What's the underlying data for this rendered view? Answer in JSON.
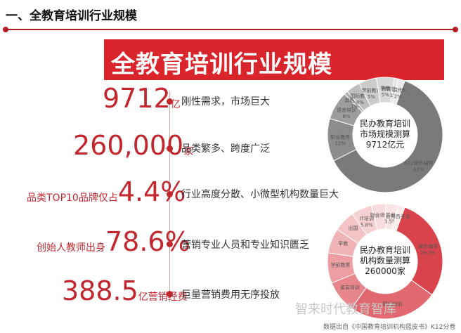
{
  "header": {
    "section_title": "一、全教育培训行业规模",
    "banner_title": "全教育培训行业规模"
  },
  "stats": [
    {
      "prefix": "",
      "value": "9712",
      "unit": "亿",
      "desc": "刚性需求，市场巨大"
    },
    {
      "prefix": "",
      "value": "260,000",
      "unit": "家",
      "desc": "品类繁多、跨度广泛"
    },
    {
      "prefix": "品类TOP10品牌仅占",
      "value": "4.4%",
      "unit": "",
      "desc": "行业高度分散、小微型机构数量巨大"
    },
    {
      "prefix": "创始人教师出身",
      "value": "78.6%",
      "unit": "",
      "desc": "营销专业人员和专业知识匮乏"
    },
    {
      "prefix": "",
      "value": "388.5",
      "unit": "亿营销经费",
      "desc": "巨量营销费用无序投放"
    }
  ],
  "colors": {
    "accent": "#c3272e",
    "banner": "#d9242b",
    "donut_gray": [
      "#7a7a7a",
      "#8c8c8c",
      "#9d9d9d",
      "#aeaeae",
      "#bdbdbd",
      "#cbcbcb",
      "#d8d8d8",
      "#e2e2e2",
      "#eaeaea"
    ],
    "donut_red": [
      "#d9444c",
      "#e1686e",
      "#e7868b",
      "#ec9ea2",
      "#f0b3b6",
      "#f3c3c5",
      "#f6d1d3",
      "#f8dcdd",
      "#fae5e6",
      "#fbeced"
    ]
  },
  "chart_data": [
    {
      "type": "pie",
      "center_title": [
        "民办教育培训",
        "市场规模测算",
        "9712亿元"
      ],
      "slices": [
        {
          "label": "K12课外辅导",
          "value": 62,
          "value_label": "62%"
        },
        {
          "label": "职业教育",
          "value": 12,
          "value_label": "12%"
        },
        {
          "label": "语言培训",
          "value": 8,
          "value_label": "8%"
        },
        {
          "label": "其他培训",
          "value": 1,
          "value_label": "1%"
        },
        {
          "label": "国际教育",
          "value": 4,
          "value_label": "4%"
        },
        {
          "label": "学前教育",
          "value": 5,
          "value_label": "5%"
        },
        {
          "label": "早教",
          "value": 5,
          "value_label": "5%"
        },
        {
          "label": "教育信息化",
          "value": 1,
          "value_label": "1%"
        },
        {
          "label": "其他",
          "value": 2,
          "value_label": "2%"
        }
      ]
    },
    {
      "type": "pie",
      "center_title": [
        "民办教育培训",
        "机构数量测算",
        "260000家"
      ],
      "slices": [
        {
          "label": "课外辅导",
          "value": 29.3,
          "value_label": "29.3%"
        },
        {
          "label": "职业培训",
          "value": 25,
          "value_label": ""
        },
        {
          "label": "语言培训",
          "value": 9,
          "value_label": ""
        },
        {
          "label": "学前教育",
          "value": 8.5,
          "value_label": ""
        },
        {
          "label": "早教",
          "value": 7,
          "value_label": ""
        },
        {
          "label": "出国",
          "value": 6,
          "value_label": ""
        },
        {
          "label": "IT培训",
          "value": 5.8,
          "value_label": "5.8%"
        },
        {
          "label": "财会培训",
          "value": 4,
          "value_label": ""
        },
        {
          "label": "其他",
          "value": 3.5,
          "value_label": "3.5%"
        },
        {
          "label": "公务员考试",
          "value": 1.9,
          "value_label": ""
        }
      ]
    }
  ],
  "footer": {
    "brand": "智来时代教育智库",
    "source": "数据出自《中国教育培训机构蓝皮书》K12分卷"
  }
}
